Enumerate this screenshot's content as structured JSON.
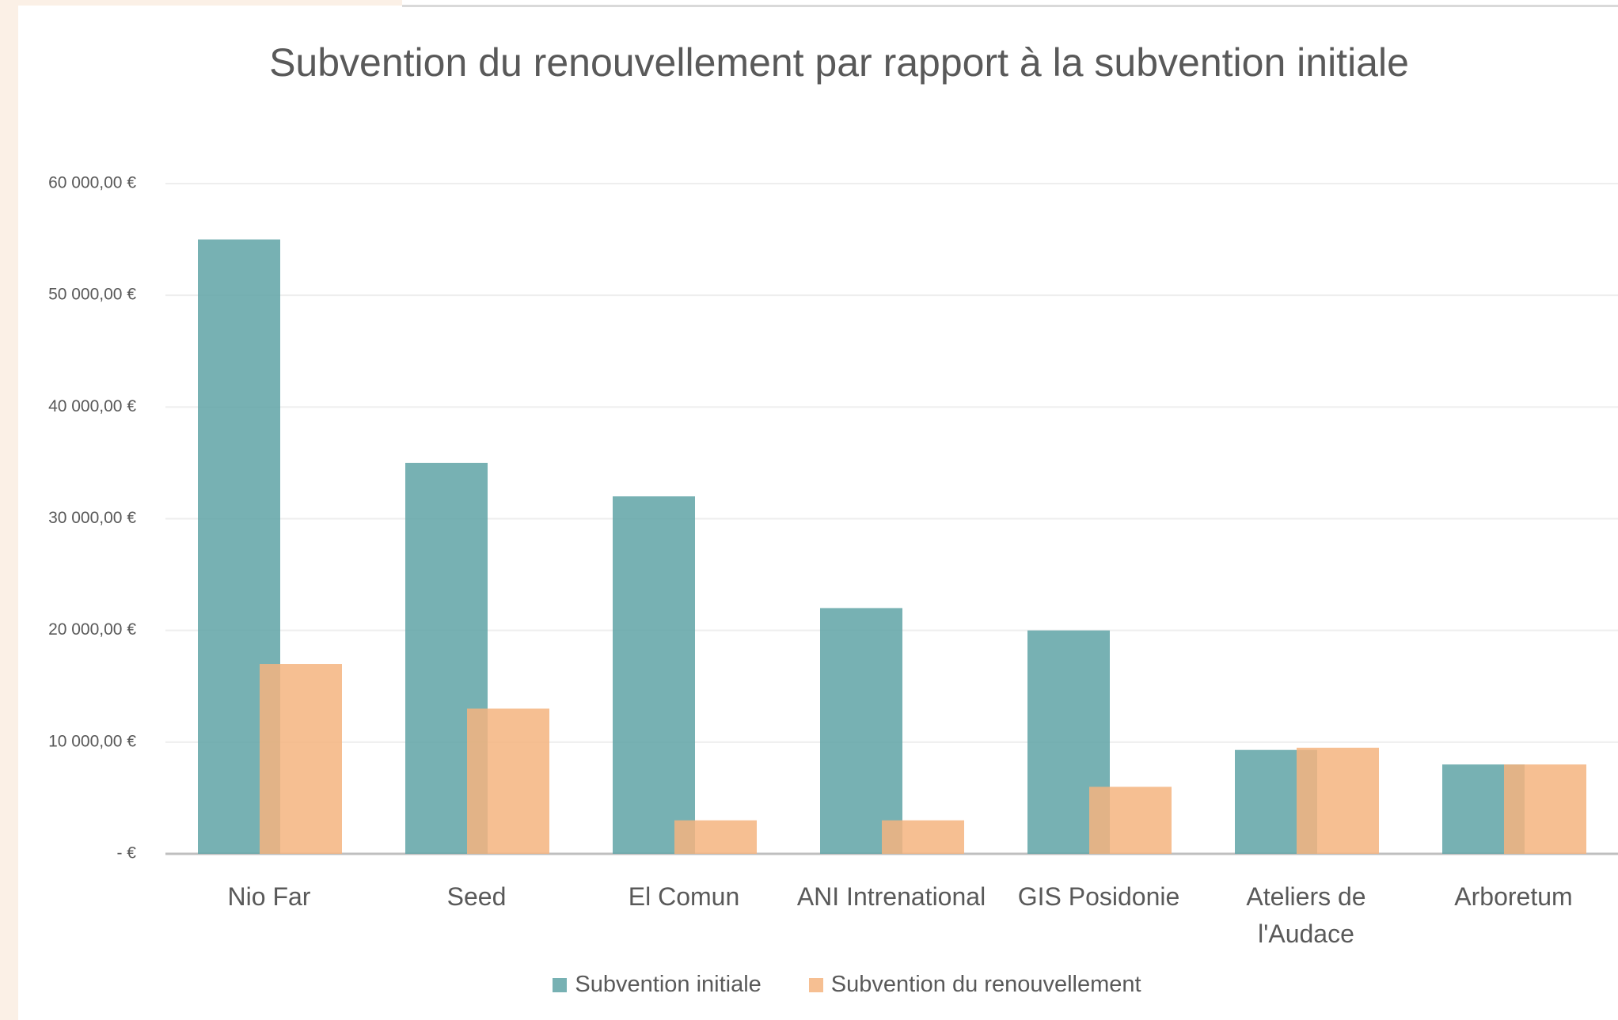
{
  "chart_data": {
    "type": "bar",
    "title": "Subvention du renouvellement par rapport à la subvention initiale",
    "categories": [
      "Nio Far",
      "Seed",
      "El Comun",
      "ANI Intrenational",
      "GIS Posidonie",
      "Ateliers de l'Audace",
      "Arboretum"
    ],
    "series": [
      {
        "name": "Subvention initiale",
        "color": "#5fa3a6",
        "values": [
          55000,
          35000,
          32000,
          22000,
          20000,
          9300,
          8000
        ]
      },
      {
        "name": "Subvention du renouvellement",
        "color": "#f4b47f",
        "values": [
          17000,
          13000,
          3000,
          3000,
          6000,
          9500,
          8000
        ]
      }
    ],
    "ylim": [
      0,
      60000
    ],
    "yticks": [
      {
        "value": 0,
        "label": "-  €"
      },
      {
        "value": 10000,
        "label": "10 000,00 €"
      },
      {
        "value": 20000,
        "label": "20 000,00 €"
      },
      {
        "value": 30000,
        "label": "30 000,00 €"
      },
      {
        "value": 40000,
        "label": "40 000,00 €"
      },
      {
        "value": 50000,
        "label": "50 000,00 €"
      },
      {
        "value": 60000,
        "label": "60 000,00 €"
      }
    ],
    "grid": true,
    "legend": "bottom"
  }
}
